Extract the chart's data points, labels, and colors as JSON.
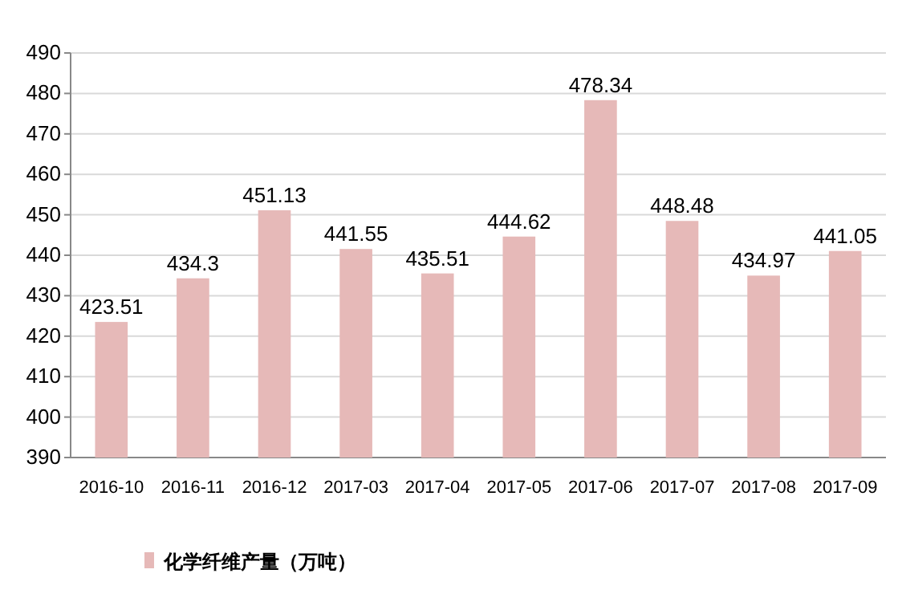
{
  "chart_data": {
    "type": "bar",
    "categories": [
      "2016-10",
      "2016-11",
      "2016-12",
      "2017-03",
      "2017-04",
      "2017-05",
      "2017-06",
      "2017-07",
      "2017-08",
      "2017-09"
    ],
    "series": [
      {
        "name": "化学纤维产量（万吨）",
        "color": "#e6b9b8",
        "values": [
          423.51,
          434.3,
          451.13,
          441.55,
          435.51,
          444.62,
          478.34,
          448.48,
          434.97,
          441.05
        ]
      }
    ],
    "ylim": [
      390,
      490
    ],
    "yticks": [
      390,
      400,
      410,
      420,
      430,
      440,
      450,
      460,
      470,
      480,
      490
    ],
    "grid": "y",
    "legend": "bottom",
    "data_labels": true
  }
}
